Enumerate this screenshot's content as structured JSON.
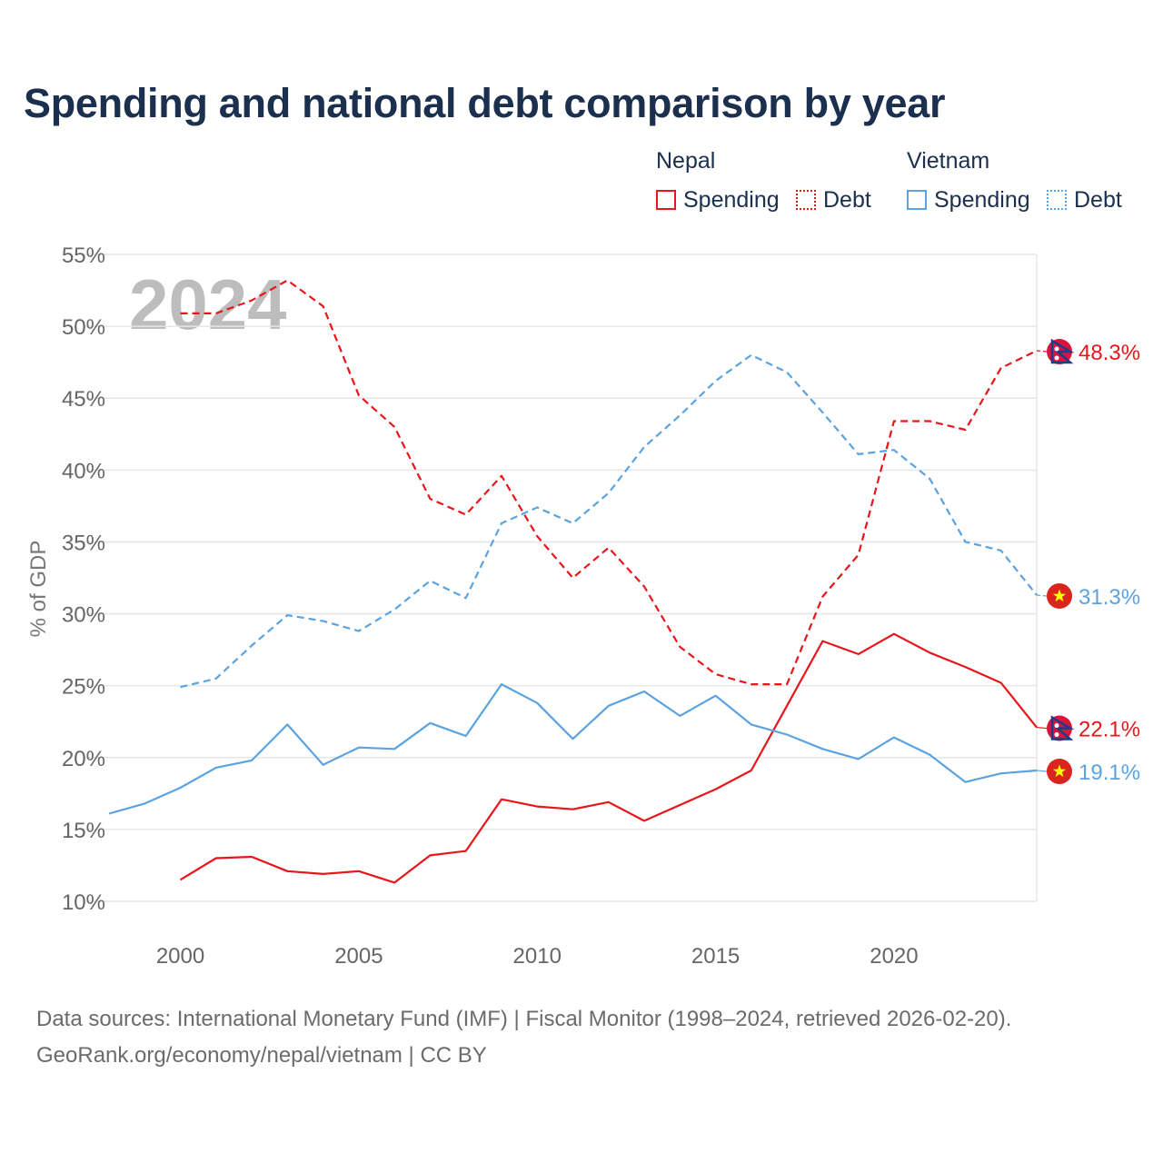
{
  "title": "Spending and national debt comparison by year",
  "legend": {
    "groups": [
      {
        "name": "Nepal",
        "items": [
          {
            "label": "Spending",
            "style": "solid",
            "color": "#e8151b"
          },
          {
            "label": "Debt",
            "style": "dotted",
            "color": "#e8151b"
          }
        ]
      },
      {
        "name": "Vietnam",
        "items": [
          {
            "label": "Spending",
            "style": "solid",
            "color": "#5ba3e0"
          },
          {
            "label": "Debt",
            "style": "dotted",
            "color": "#5ba3e0"
          }
        ]
      }
    ]
  },
  "year_watermark": "2024",
  "source": {
    "line1": "Data sources: International Monetary Fund (IMF) | Fiscal Monitor (1998–2024, retrieved 2026-02-20).",
    "line2": "GeoRank.org/economy/nepal/vietnam | CC BY"
  },
  "chart_data": {
    "type": "line",
    "title": "Spending and national debt comparison by year",
    "xlabel": "",
    "ylabel": "% of GDP",
    "xlim": [
      1998,
      2024
    ],
    "ylim": [
      8,
      55
    ],
    "x_ticks": [
      2000,
      2005,
      2010,
      2015,
      2020
    ],
    "x_tick_labels": [
      "2000",
      "2005",
      "2010",
      "2015",
      "2020"
    ],
    "y_ticks": [
      10,
      15,
      20,
      25,
      30,
      35,
      40,
      45,
      50,
      55
    ],
    "y_tick_labels": [
      "10%",
      "15%",
      "20%",
      "25%",
      "30%",
      "35%",
      "40%",
      "45%",
      "50%",
      "55%"
    ],
    "grid": true,
    "series": [
      {
        "name": "Nepal Spending",
        "country": "Nepal",
        "metric": "Spending",
        "color": "#e8151b",
        "dash": "solid",
        "x": [
          2000,
          2001,
          2002,
          2003,
          2004,
          2005,
          2006,
          2007,
          2008,
          2009,
          2010,
          2011,
          2012,
          2013,
          2014,
          2015,
          2016,
          2017,
          2018,
          2019,
          2020,
          2021,
          2022,
          2023,
          2024
        ],
        "values": [
          11.5,
          13.0,
          13.1,
          12.1,
          11.9,
          12.1,
          11.3,
          13.2,
          13.5,
          17.1,
          16.6,
          16.4,
          16.9,
          15.6,
          16.7,
          17.8,
          19.1,
          23.6,
          28.1,
          27.2,
          28.6,
          27.3,
          26.3,
          25.2,
          22.1
        ],
        "end_label": "22.1%"
      },
      {
        "name": "Nepal Debt",
        "country": "Nepal",
        "metric": "Debt",
        "color": "#e8151b",
        "dash": "dashed",
        "x": [
          2000,
          2001,
          2002,
          2003,
          2004,
          2005,
          2006,
          2007,
          2008,
          2009,
          2010,
          2011,
          2012,
          2013,
          2014,
          2015,
          2016,
          2017,
          2018,
          2019,
          2020,
          2021,
          2022,
          2023,
          2024
        ],
        "values": [
          50.9,
          50.9,
          51.8,
          53.2,
          51.4,
          45.2,
          43.0,
          38.0,
          36.9,
          39.6,
          35.4,
          32.5,
          34.6,
          31.9,
          27.7,
          25.8,
          25.1,
          25.1,
          31.2,
          34.1,
          43.4,
          43.4,
          42.8,
          47.1,
          48.3
        ],
        "end_label": "48.3%"
      },
      {
        "name": "Vietnam Spending",
        "country": "Vietnam",
        "metric": "Spending",
        "color": "#5ba3e0",
        "dash": "solid",
        "x": [
          1998,
          1999,
          2000,
          2001,
          2002,
          2003,
          2004,
          2005,
          2006,
          2007,
          2008,
          2009,
          2010,
          2011,
          2012,
          2013,
          2014,
          2015,
          2016,
          2017,
          2018,
          2019,
          2020,
          2021,
          2022,
          2023,
          2024
        ],
        "values": [
          16.1,
          16.8,
          17.9,
          19.3,
          19.8,
          22.3,
          19.5,
          20.7,
          20.6,
          22.4,
          21.5,
          25.1,
          23.8,
          21.3,
          23.6,
          24.6,
          22.9,
          24.3,
          22.3,
          21.6,
          20.6,
          19.9,
          21.4,
          20.2,
          18.3,
          18.9,
          19.1
        ],
        "end_label": "19.1%"
      },
      {
        "name": "Vietnam Debt",
        "country": "Vietnam",
        "metric": "Debt",
        "color": "#5ba3e0",
        "dash": "dashed",
        "x": [
          2000,
          2001,
          2002,
          2003,
          2004,
          2005,
          2006,
          2007,
          2008,
          2009,
          2010,
          2011,
          2012,
          2013,
          2014,
          2015,
          2016,
          2017,
          2018,
          2019,
          2020,
          2021,
          2022,
          2023,
          2024
        ],
        "values": [
          24.9,
          25.5,
          27.8,
          29.9,
          29.5,
          28.8,
          30.3,
          32.3,
          31.1,
          36.3,
          37.4,
          36.3,
          38.4,
          41.6,
          43.8,
          46.2,
          48.0,
          46.8,
          44.0,
          41.1,
          41.4,
          39.4,
          35.0,
          34.4,
          31.3
        ],
        "end_label": "31.3%"
      }
    ]
  },
  "icons": {
    "nepal": "nepal-flag-icon",
    "vietnam": "vietnam-flag-icon"
  }
}
